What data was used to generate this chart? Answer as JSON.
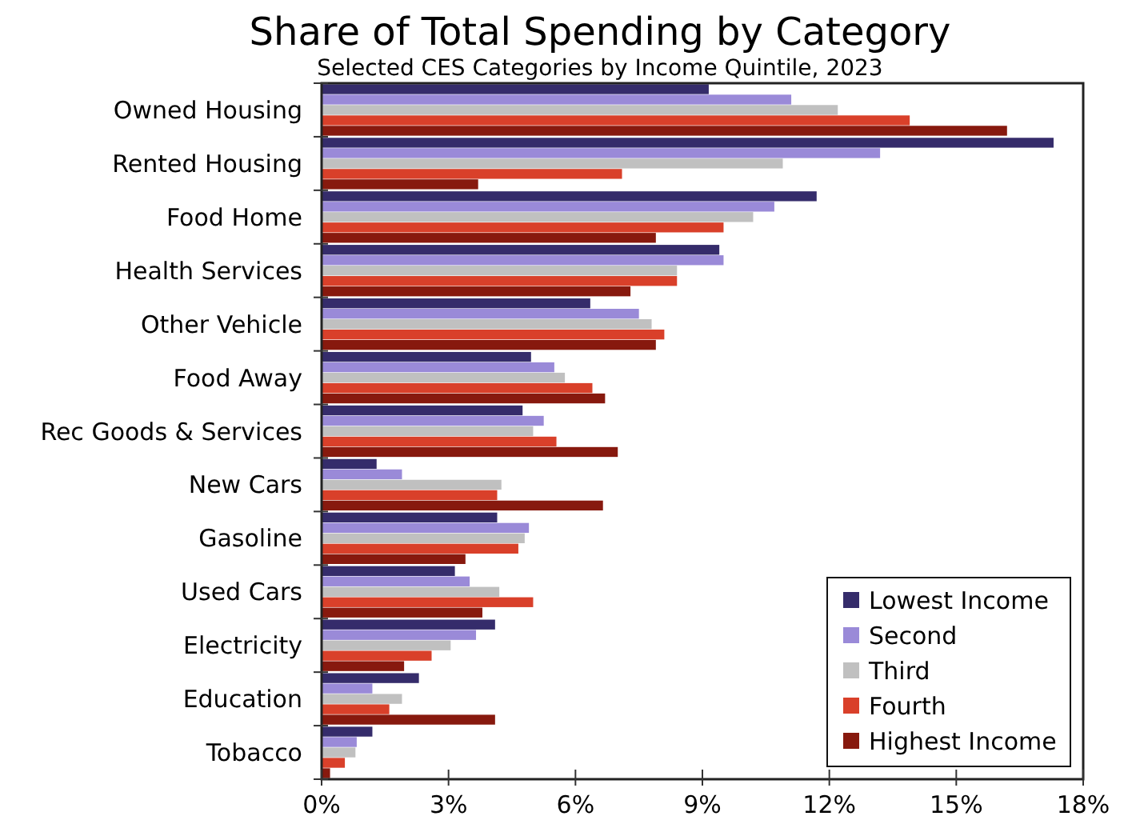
{
  "chart_data": {
    "type": "bar",
    "orientation": "horizontal",
    "title": "Share of Total Spending by Category",
    "subtitle": "Selected CES Categories by Income Quintile, 2023",
    "categories": [
      "Owned Housing",
      "Rented Housing",
      "Food Home",
      "Health Services",
      "Other Vehicle",
      "Food Away",
      "Rec Goods & Services",
      "New Cars",
      "Gasoline",
      "Used Cars",
      "Electricity",
      "Education",
      "Tobacco"
    ],
    "series": [
      {
        "name": "Lowest Income",
        "color": "#352c6b",
        "values": [
          9.15,
          17.3,
          11.7,
          9.4,
          6.35,
          4.95,
          4.75,
          1.3,
          4.15,
          3.15,
          4.1,
          2.3,
          1.2
        ]
      },
      {
        "name": "Second",
        "color": "#9a8ad8",
        "values": [
          11.1,
          13.2,
          10.7,
          9.5,
          7.5,
          5.5,
          5.25,
          1.9,
          4.9,
          3.5,
          3.65,
          1.2,
          0.83
        ]
      },
      {
        "name": "Third",
        "color": "#c0c0c0",
        "values": [
          12.2,
          10.9,
          10.2,
          8.4,
          7.8,
          5.75,
          5.0,
          4.25,
          4.8,
          4.2,
          3.05,
          1.9,
          0.8
        ]
      },
      {
        "name": "Fourth",
        "color": "#d9402a",
        "values": [
          13.9,
          7.1,
          9.5,
          8.4,
          8.1,
          6.4,
          5.55,
          4.15,
          4.65,
          5.0,
          2.6,
          1.6,
          0.55
        ]
      },
      {
        "name": "Highest Income",
        "color": "#87190e",
        "values": [
          16.2,
          3.7,
          7.9,
          7.3,
          7.9,
          6.7,
          7.0,
          6.65,
          3.4,
          3.8,
          1.95,
          4.1,
          0.2
        ]
      }
    ],
    "xlim": [
      0,
      18
    ],
    "xticks": [
      {
        "value": 0,
        "label": "0%"
      },
      {
        "value": 3,
        "label": "3%"
      },
      {
        "value": 6,
        "label": "6%"
      },
      {
        "value": 9,
        "label": "9%"
      },
      {
        "value": 12,
        "label": "12%"
      },
      {
        "value": 15,
        "label": "15%"
      },
      {
        "value": 18,
        "label": "18%"
      }
    ],
    "grid": false,
    "legend": "bottom right"
  }
}
